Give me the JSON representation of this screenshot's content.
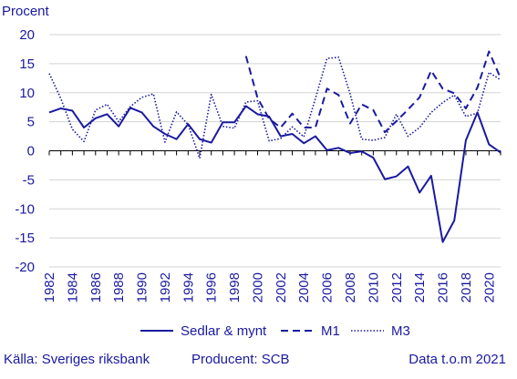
{
  "chart_data": {
    "type": "line",
    "ylabel": "Procent",
    "xlabel": "",
    "ylim": [
      -20,
      20
    ],
    "xlim": [
      1982,
      2021
    ],
    "yticks": [
      20,
      15,
      10,
      5,
      0,
      -5,
      -10,
      -15,
      -20
    ],
    "xticks": [
      1982,
      1984,
      1986,
      1988,
      1990,
      1992,
      1994,
      1996,
      1998,
      2000,
      2002,
      2004,
      2006,
      2008,
      2010,
      2012,
      2014,
      2016,
      2018,
      2020
    ],
    "grid": "horizontal",
    "legend_position": "bottom",
    "series": [
      {
        "name": "Sedlar & mynt",
        "style": "solid",
        "x": [
          1982,
          1983,
          1984,
          1985,
          1986,
          1987,
          1988,
          1989,
          1990,
          1991,
          1992,
          1993,
          1994,
          1995,
          1996,
          1997,
          1998,
          1999,
          2000,
          2001,
          2002,
          2003,
          2004,
          2005,
          2006,
          2007,
          2008,
          2009,
          2010,
          2011,
          2012,
          2013,
          2014,
          2015,
          2016,
          2017,
          2018,
          2019,
          2020,
          2021
        ],
        "values": [
          6.6,
          7.3,
          6.9,
          4.0,
          5.6,
          6.3,
          4.2,
          7.4,
          6.6,
          4.2,
          2.9,
          2.0,
          4.6,
          2.0,
          1.4,
          4.9,
          4.9,
          7.7,
          6.3,
          5.9,
          2.5,
          2.9,
          1.3,
          2.5,
          0.1,
          0.5,
          -0.4,
          -0.1,
          -1.2,
          -4.9,
          -4.4,
          -2.7,
          -7.2,
          -4.3,
          -15.7,
          -12.0,
          1.8,
          6.6,
          1.1,
          -0.3
        ]
      },
      {
        "name": "M1",
        "style": "dashed",
        "x": [
          1999,
          2000,
          2001,
          2002,
          2003,
          2004,
          2005,
          2006,
          2007,
          2008,
          2009,
          2010,
          2011,
          2012,
          2013,
          2014,
          2015,
          2016,
          2017,
          2018,
          2019,
          2020,
          2021
        ],
        "values": [
          16.3,
          9.1,
          5.5,
          4.0,
          6.4,
          4.0,
          4.0,
          10.7,
          9.6,
          4.7,
          8.0,
          7.0,
          3.2,
          5.1,
          7.1,
          9.2,
          13.8,
          10.7,
          9.9,
          7.3,
          10.9,
          17.1,
          12.5
        ]
      },
      {
        "name": "M3",
        "style": "dotted",
        "x": [
          1982,
          1983,
          1984,
          1985,
          1986,
          1987,
          1988,
          1989,
          1990,
          1991,
          1992,
          1993,
          1994,
          1995,
          1996,
          1997,
          1998,
          1999,
          2000,
          2001,
          2002,
          2003,
          2004,
          2005,
          2006,
          2007,
          2008,
          2009,
          2010,
          2011,
          2012,
          2013,
          2014,
          2015,
          2016,
          2017,
          2018,
          2019,
          2020,
          2021
        ],
        "values": [
          13.3,
          9.0,
          3.7,
          1.6,
          7.0,
          8.0,
          5.0,
          7.6,
          9.2,
          9.8,
          1.5,
          6.7,
          4.5,
          -1.3,
          9.7,
          4.2,
          3.9,
          8.4,
          8.6,
          1.7,
          2.1,
          4.1,
          2.4,
          9.0,
          15.9,
          16.1,
          9.8,
          2.0,
          1.8,
          2.3,
          6.3,
          2.5,
          4.0,
          6.6,
          8.3,
          9.6,
          5.9,
          6.5,
          13.5,
          12.2
        ]
      }
    ]
  },
  "footer": {
    "source": "Källa: Sveriges riksbank",
    "producer": "Producent: SCB",
    "data_through": "Data t.o.m 2021"
  },
  "colors": {
    "line": "#1a1aa0",
    "grid": "#d3d3d3",
    "axis": "#000000",
    "text": "#1a1aa0"
  }
}
